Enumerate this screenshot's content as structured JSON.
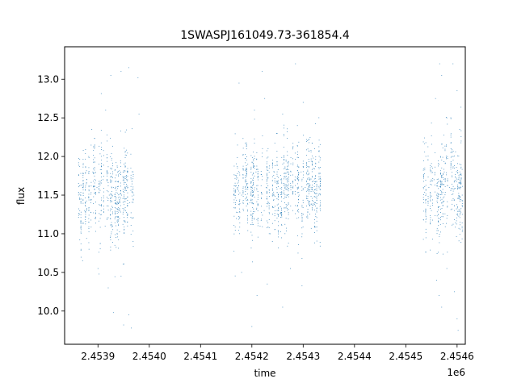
{
  "chart_data": {
    "type": "scatter",
    "title": "1SWASPJ161049.73-361854.4",
    "xlabel": "time",
    "ylabel": "flux",
    "x_offset_label": "1e6",
    "xlim": [
      2453835,
      2454616
    ],
    "ylim": [
      9.57,
      13.42
    ],
    "x_ticks": [
      2453900,
      2454000,
      2454100,
      2454200,
      2454300,
      2454400,
      2454500,
      2454600
    ],
    "x_tick_labels": [
      "2.4539",
      "2.4540",
      "2.4541",
      "2.4542",
      "2.4543",
      "2.4544",
      "2.4545",
      "2.4546"
    ],
    "y_ticks": [
      10.0,
      10.5,
      11.0,
      11.5,
      12.0,
      12.5,
      13.0
    ],
    "y_tick_labels": [
      "10.0",
      "10.5",
      "11.0",
      "11.5",
      "12.0",
      "12.5",
      "13.0"
    ],
    "grid": false,
    "marker_color": "#1f77b4",
    "series": [
      {
        "values_description_note": "",
        "clusters": [
          {
            "x_range": [
              2453862,
              2453975
            ],
            "y_center": 11.5,
            "y_spread": 0.45
          },
          {
            "x_range": [
              2454165,
              2454335
            ],
            "y_center": 11.55,
            "y_spread": 0.45
          },
          {
            "x_range": [
              2454532,
              2454612
            ],
            "y_center": 11.55,
            "y_spread": 0.5
          }
        ],
        "points": [
          [
            2453866,
            11.5
          ],
          [
            2453870,
            11.6
          ],
          [
            2453874,
            11.3
          ],
          [
            2453878,
            11.7
          ],
          [
            2453882,
            12.0
          ],
          [
            2453886,
            11.4
          ],
          [
            2453890,
            11.8
          ],
          [
            2453894,
            11.2
          ],
          [
            2453898,
            11.6
          ],
          [
            2453902,
            11.9
          ],
          [
            2453906,
            11.3
          ],
          [
            2453910,
            11.7
          ],
          [
            2453914,
            11.1
          ],
          [
            2453918,
            12.2
          ],
          [
            2453922,
            11.5
          ],
          [
            2453926,
            11.0
          ],
          [
            2453930,
            11.6
          ],
          [
            2453934,
            11.4
          ],
          [
            2453938,
            11.8
          ],
          [
            2453942,
            11.2
          ],
          [
            2453946,
            11.5
          ],
          [
            2453950,
            11.7
          ],
          [
            2453954,
            11.3
          ],
          [
            2453958,
            11.6
          ],
          [
            2453962,
            11.4
          ],
          [
            2453966,
            11.2
          ],
          [
            2453970,
            11.5
          ],
          [
            2453888,
            12.35
          ],
          [
            2453915,
            12.6
          ],
          [
            2453925,
            13.05
          ],
          [
            2453945,
            13.1
          ],
          [
            2453960,
            13.15
          ],
          [
            2453978,
            13.02
          ],
          [
            2453980,
            12.55
          ],
          [
            2453870,
            10.65
          ],
          [
            2453900,
            10.55
          ],
          [
            2453920,
            10.3
          ],
          [
            2453930,
            9.98
          ],
          [
            2453945,
            10.45
          ],
          [
            2453950,
            9.82
          ],
          [
            2453960,
            9.95
          ],
          [
            2453965,
            9.78
          ],
          [
            2454168,
            11.4
          ],
          [
            2454172,
            11.6
          ],
          [
            2454176,
            11.2
          ],
          [
            2454180,
            11.5
          ],
          [
            2454184,
            11.3
          ],
          [
            2454188,
            11.7
          ],
          [
            2454192,
            11.9
          ],
          [
            2454196,
            11.4
          ],
          [
            2454200,
            11.6
          ],
          [
            2454204,
            11.2
          ],
          [
            2454208,
            11.8
          ],
          [
            2454212,
            11.5
          ],
          [
            2454216,
            11.1
          ],
          [
            2454220,
            11.7
          ],
          [
            2454224,
            11.3
          ],
          [
            2454228,
            11.6
          ],
          [
            2454232,
            11.4
          ],
          [
            2454236,
            11.0
          ],
          [
            2454240,
            11.5
          ],
          [
            2454244,
            11.8
          ],
          [
            2454248,
            11.6
          ],
          [
            2454252,
            11.3
          ],
          [
            2454256,
            11.7
          ],
          [
            2454260,
            11.9
          ],
          [
            2454264,
            11.4
          ],
          [
            2454268,
            11.5
          ],
          [
            2454272,
            11.8
          ],
          [
            2454276,
            11.6
          ],
          [
            2454280,
            11.3
          ],
          [
            2454284,
            11.7
          ],
          [
            2454288,
            11.2
          ],
          [
            2454292,
            11.5
          ],
          [
            2454296,
            11.8
          ],
          [
            2454300,
            11.4
          ],
          [
            2454304,
            11.6
          ],
          [
            2454330,
            11.5
          ],
          [
            2454334,
            11.7
          ],
          [
            2454326,
            11.3
          ],
          [
            2454175,
            12.95
          ],
          [
            2454205,
            12.6
          ],
          [
            2454220,
            13.1
          ],
          [
            2454225,
            12.75
          ],
          [
            2454248,
            12.3
          ],
          [
            2454260,
            12.55
          ],
          [
            2454285,
            13.2
          ],
          [
            2454300,
            12.7
          ],
          [
            2454180,
            10.5
          ],
          [
            2454200,
            9.8
          ],
          [
            2454210,
            10.2
          ],
          [
            2454230,
            10.35
          ],
          [
            2454240,
            10.9
          ],
          [
            2454260,
            10.05
          ],
          [
            2454275,
            10.55
          ],
          [
            2454290,
            10.75
          ],
          [
            2454535,
            11.4
          ],
          [
            2454540,
            11.2
          ],
          [
            2454545,
            11.6
          ],
          [
            2454550,
            11.3
          ],
          [
            2454555,
            11.7
          ],
          [
            2454560,
            11.5
          ],
          [
            2454565,
            11.9
          ],
          [
            2454570,
            11.4
          ],
          [
            2454575,
            11.8
          ],
          [
            2454580,
            11.2
          ],
          [
            2454585,
            11.6
          ],
          [
            2454590,
            12.0
          ],
          [
            2454595,
            11.3
          ],
          [
            2454600,
            11.7
          ],
          [
            2454605,
            11.9
          ],
          [
            2454610,
            11.5
          ],
          [
            2454558,
            12.75
          ],
          [
            2454566,
            13.2
          ],
          [
            2454570,
            13.05
          ],
          [
            2454580,
            12.5
          ],
          [
            2454592,
            13.2
          ],
          [
            2454600,
            12.85
          ],
          [
            2454605,
            12.35
          ],
          [
            2454560,
            10.4
          ],
          [
            2454565,
            10.2
          ],
          [
            2454570,
            10.05
          ],
          [
            2454580,
            10.55
          ],
          [
            2454595,
            10.25
          ],
          [
            2454600,
            9.9
          ],
          [
            2454602,
            9.75
          ]
        ]
      }
    ]
  }
}
